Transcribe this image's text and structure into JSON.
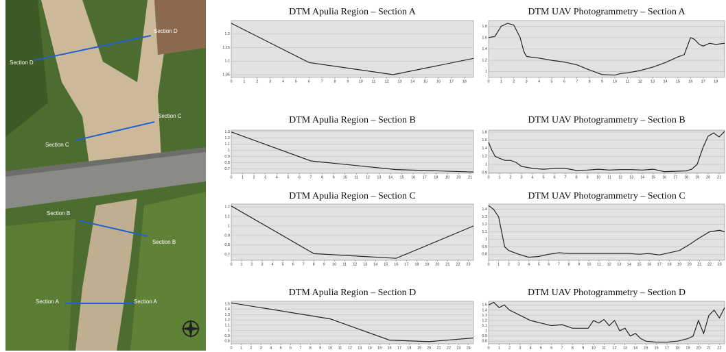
{
  "photo": {
    "sections": [
      {
        "start": "Section D",
        "end": "Section D"
      },
      {
        "start": "Section C",
        "end": "Section C"
      },
      {
        "start": "Section B",
        "end": "Section B"
      },
      {
        "start": "Section A",
        "end": "Section A"
      }
    ]
  },
  "chart_data": [
    {
      "type": "line",
      "title": "DTM Apulia Region – Section A",
      "color": "#222222",
      "grid": true,
      "x": [
        0,
        6,
        12.5,
        18.7
      ],
      "values": [
        1.24,
        1.095,
        1.05,
        1.11
      ],
      "xlim": [
        0,
        18.7
      ],
      "ylim": [
        1.04,
        1.25
      ],
      "xticks": [
        0,
        1,
        2,
        3,
        4,
        5,
        6,
        7,
        8,
        9,
        10,
        11,
        12,
        13,
        14,
        15,
        16,
        17,
        18
      ],
      "yticks": [
        1.05,
        1.1,
        1.15,
        1.2
      ]
    },
    {
      "type": "line",
      "title": "DTM UAV Photogrammetry – Section A",
      "color": "#222222",
      "grid": true,
      "x": [
        0,
        0.5,
        1,
        1.5,
        2,
        2.5,
        2.8,
        3,
        3.5,
        4,
        5,
        6,
        7,
        8,
        9,
        10,
        10.5,
        11,
        11.5,
        12,
        13,
        14,
        15,
        15.5,
        16,
        16.3,
        16.7,
        17,
        17.5,
        18,
        18.7
      ],
      "values": [
        1.6,
        1.62,
        1.8,
        1.85,
        1.82,
        1.6,
        1.35,
        1.27,
        1.25,
        1.24,
        1.2,
        1.17,
        1.12,
        1.03,
        0.95,
        0.94,
        0.97,
        0.98,
        1.0,
        1.02,
        1.08,
        1.16,
        1.26,
        1.3,
        1.6,
        1.57,
        1.48,
        1.45,
        1.5,
        1.48,
        1.5
      ],
      "xlim": [
        0,
        18.7
      ],
      "ylim": [
        0.9,
        1.9
      ],
      "xticks": [
        0,
        1,
        2,
        3,
        4,
        5,
        6,
        7,
        8,
        9,
        10,
        11,
        12,
        13,
        14,
        15,
        16,
        17,
        18
      ],
      "yticks": [
        1,
        1.2,
        1.4,
        1.6,
        1.8
      ]
    },
    {
      "type": "line",
      "title": "DTM Apulia Region – Section B",
      "color": "#222222",
      "grid": true,
      "x": [
        0,
        7,
        14.5,
        21.3
      ],
      "values": [
        1.3,
        0.83,
        0.69,
        0.65
      ],
      "xlim": [
        0,
        21.3
      ],
      "ylim": [
        0.63,
        1.33
      ],
      "xticks": [
        0,
        1,
        2,
        3,
        4,
        5,
        6,
        7,
        8,
        9,
        10,
        11,
        12,
        13,
        14,
        15,
        16,
        17,
        18,
        19,
        20,
        21
      ],
      "yticks": [
        0.7,
        0.8,
        0.9,
        1,
        1.1,
        1.2,
        1.3
      ]
    },
    {
      "type": "line",
      "title": "DTM UAV Photogrammetry – Section B",
      "color": "#222222",
      "grid": true,
      "x": [
        0,
        0.3,
        0.6,
        1,
        1.5,
        2,
        2.5,
        3,
        4,
        5,
        6,
        7,
        8,
        9,
        10,
        11,
        12,
        13,
        14,
        15,
        16,
        17,
        18,
        18.5,
        19,
        19.5,
        20,
        20.5,
        21,
        21.5
      ],
      "values": [
        1.55,
        1.35,
        1.2,
        1.15,
        1.1,
        1.1,
        1.05,
        0.95,
        0.9,
        0.88,
        0.9,
        0.9,
        0.85,
        0.86,
        0.88,
        0.86,
        0.87,
        0.87,
        0.86,
        0.88,
        0.82,
        0.83,
        0.84,
        0.88,
        1.0,
        1.4,
        1.7,
        1.78,
        1.68,
        1.82
      ],
      "xlim": [
        0,
        21.5
      ],
      "ylim": [
        0.78,
        1.85
      ],
      "xticks": [
        0,
        1,
        2,
        3,
        4,
        5,
        6,
        7,
        8,
        9,
        10,
        11,
        12,
        13,
        14,
        15,
        16,
        17,
        18,
        19,
        20,
        21
      ],
      "yticks": [
        0.8,
        1,
        1.2,
        1.4,
        1.6,
        1.8
      ]
    },
    {
      "type": "line",
      "title": "DTM Apulia Region – Section C",
      "color": "#222222",
      "grid": true,
      "x": [
        0,
        8,
        16,
        23.5
      ],
      "values": [
        1.21,
        0.71,
        0.66,
        1.0
      ],
      "xlim": [
        0,
        23.5
      ],
      "ylim": [
        0.64,
        1.23
      ],
      "xticks": [
        0,
        1,
        2,
        3,
        4,
        5,
        6,
        7,
        8,
        9,
        10,
        11,
        12,
        13,
        14,
        15,
        16,
        17,
        18,
        19,
        20,
        21,
        22,
        23
      ],
      "yticks": [
        0.7,
        0.8,
        0.9,
        1,
        1.1,
        1.2
      ]
    },
    {
      "type": "line",
      "title": "DTM UAV Photogrammetry – Section C",
      "color": "#222222",
      "grid": true,
      "x": [
        0,
        0.5,
        1,
        1.3,
        1.6,
        2,
        3,
        4,
        5,
        6,
        7,
        8,
        10,
        12,
        14,
        15,
        16,
        16.5,
        17,
        18,
        19,
        20,
        21,
        22,
        23,
        23.5
      ],
      "values": [
        1.45,
        1.4,
        1.3,
        1.1,
        0.9,
        0.85,
        0.8,
        0.76,
        0.77,
        0.8,
        0.82,
        0.81,
        0.81,
        0.81,
        0.81,
        0.8,
        0.81,
        0.8,
        0.79,
        0.82,
        0.85,
        0.93,
        1.02,
        1.1,
        1.12,
        1.1
      ],
      "xlim": [
        0,
        23.5
      ],
      "ylim": [
        0.72,
        1.47
      ],
      "xticks": [
        0,
        1,
        2,
        3,
        4,
        5,
        6,
        7,
        8,
        9,
        10,
        11,
        12,
        13,
        14,
        15,
        16,
        17,
        18,
        19,
        20,
        21,
        22,
        23
      ],
      "yticks": [
        0.8,
        0.9,
        1,
        1.1,
        1.2,
        1.3,
        1.4
      ]
    },
    {
      "type": "line",
      "title": "DTM Apulia Region – Section D",
      "color": "#222222",
      "grid": true,
      "x": [
        0,
        10,
        16,
        20,
        24.5
      ],
      "values": [
        1.52,
        1.22,
        0.82,
        0.79,
        0.86
      ],
      "xlim": [
        0,
        24.5
      ],
      "ylim": [
        0.75,
        1.55
      ],
      "xticks": [
        0,
        1,
        2,
        3,
        4,
        5,
        6,
        7,
        8,
        9,
        10,
        11,
        12,
        13,
        14,
        15,
        16,
        17,
        18,
        19,
        20,
        21,
        22,
        23,
        24
      ],
      "yticks": [
        0.8,
        0.9,
        1,
        1.1,
        1.2,
        1.3,
        1.4,
        1.5
      ]
    },
    {
      "type": "line",
      "title": "DTM UAV Photogrammetry – Section D",
      "color": "#222222",
      "grid": true,
      "x": [
        0,
        0.5,
        1,
        1.5,
        2,
        3,
        4,
        5,
        6,
        7,
        8,
        9,
        9.5,
        10,
        10.5,
        11,
        11.5,
        12,
        12.5,
        13,
        13.5,
        14,
        14.5,
        15,
        16,
        17,
        18,
        19,
        19.5,
        20,
        20.5,
        21,
        21.5,
        22,
        22.5
      ],
      "values": [
        1.5,
        1.55,
        1.45,
        1.5,
        1.4,
        1.3,
        1.2,
        1.15,
        1.1,
        1.12,
        1.05,
        1.05,
        1.05,
        1.2,
        1.15,
        1.22,
        1.1,
        1.2,
        1.0,
        1.05,
        0.9,
        0.95,
        0.85,
        0.8,
        0.78,
        0.78,
        0.8,
        0.85,
        0.9,
        1.2,
        0.95,
        1.3,
        1.4,
        1.25,
        1.45
      ],
      "xlim": [
        0,
        22.5
      ],
      "ylim": [
        0.75,
        1.57
      ],
      "xticks": [
        0,
        1,
        2,
        3,
        4,
        5,
        6,
        7,
        8,
        9,
        10,
        11,
        12,
        13,
        14,
        15,
        16,
        17,
        18,
        19,
        20,
        21,
        22
      ],
      "yticks": [
        0.8,
        0.9,
        1,
        1.1,
        1.2,
        1.3,
        1.4,
        1.5
      ]
    }
  ]
}
